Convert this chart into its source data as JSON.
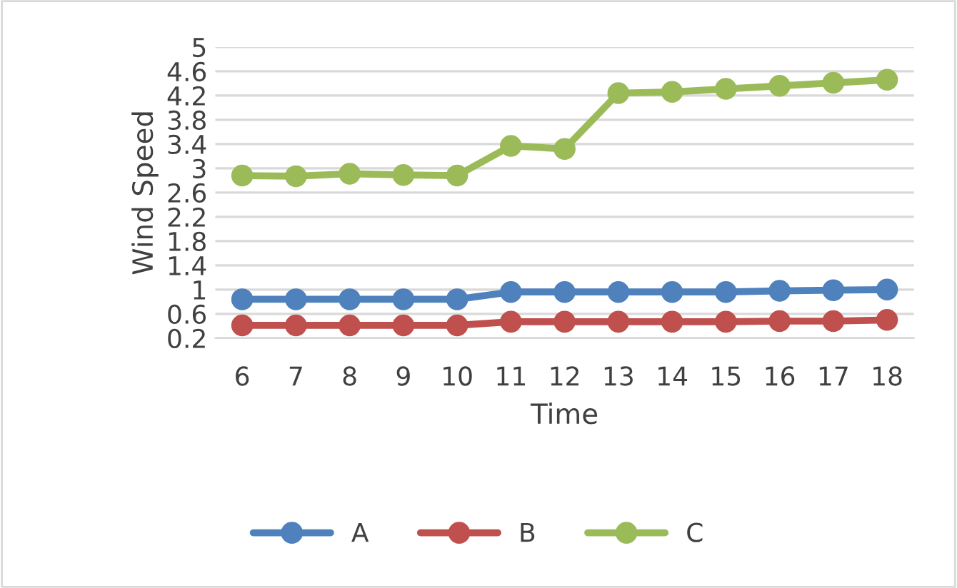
{
  "chart_data": {
    "type": "line",
    "xlabel": "Time",
    "ylabel": "Wind Speed",
    "categories": [
      "6",
      "7",
      "8",
      "9",
      "10",
      "11",
      "12",
      "13",
      "14",
      "15",
      "16",
      "17",
      "18"
    ],
    "series": [
      {
        "name": "A",
        "color": "#4f81bd",
        "values": [
          0.84,
          0.84,
          0.84,
          0.84,
          0.84,
          0.96,
          0.96,
          0.96,
          0.96,
          0.96,
          0.98,
          0.99,
          1.0
        ]
      },
      {
        "name": "B",
        "color": "#c0504d",
        "values": [
          0.41,
          0.41,
          0.41,
          0.41,
          0.41,
          0.47,
          0.47,
          0.47,
          0.47,
          0.47,
          0.48,
          0.48,
          0.5
        ]
      },
      {
        "name": "C",
        "color": "#9bbb59",
        "values": [
          2.88,
          2.87,
          2.91,
          2.89,
          2.88,
          3.37,
          3.32,
          4.24,
          4.26,
          4.31,
          4.36,
          4.41,
          4.46
        ]
      }
    ],
    "ylim": [
      0.2,
      5
    ],
    "yticks": [
      0.2,
      0.6,
      1,
      1.4,
      1.8,
      2.2,
      2.6,
      3,
      3.4,
      3.8,
      4.2,
      4.6,
      5
    ],
    "grid": "y",
    "legend": "bottom",
    "marker": "circle",
    "line_style": "solid"
  }
}
